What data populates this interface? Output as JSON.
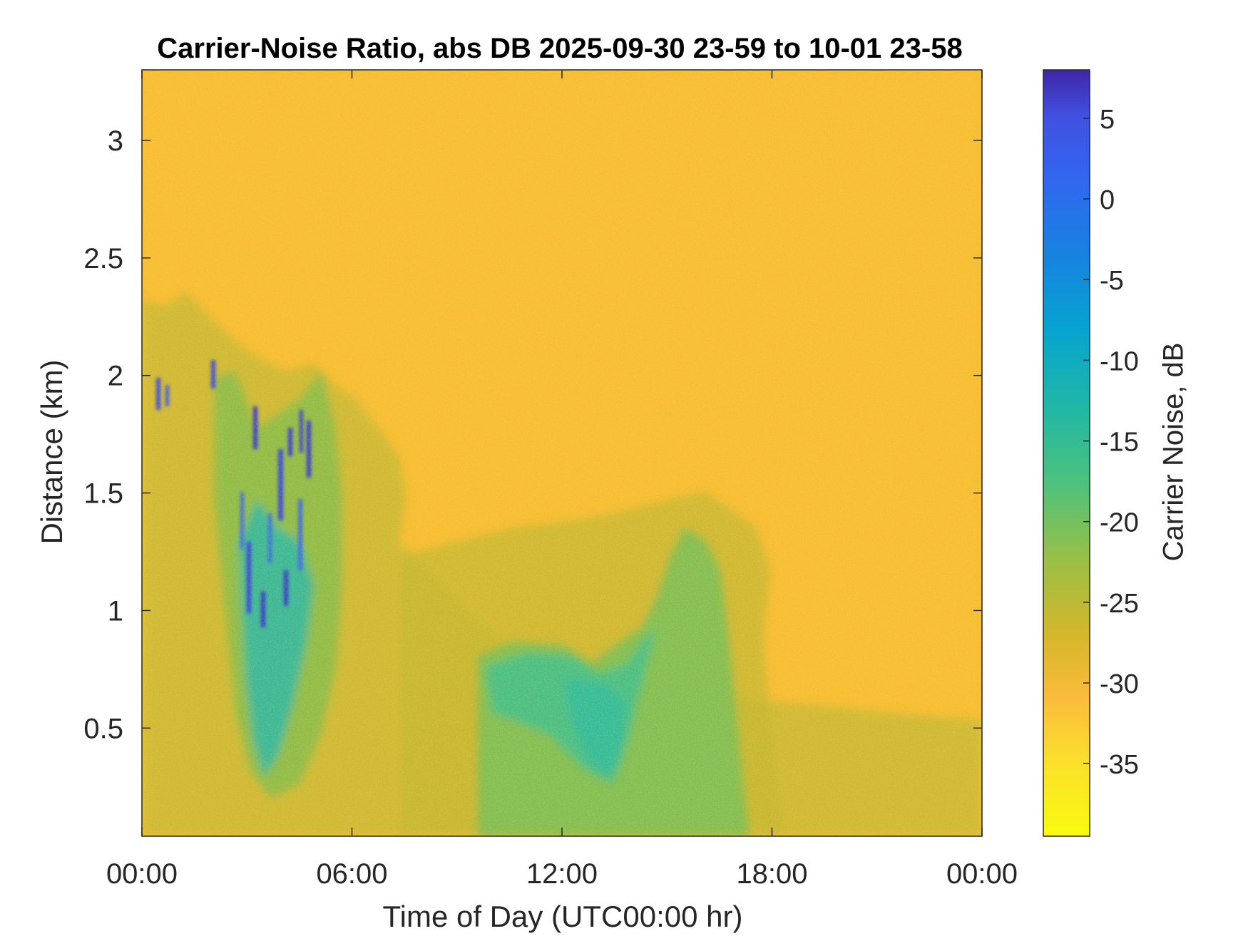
{
  "chart_data": {
    "type": "heatmap",
    "title": "Carrier-Noise Ratio, abs DB 2025-09-30 23-59 to 10-01 23-58",
    "xlabel": "Time of Day (UTC00:00 hr)",
    "ylabel": "Distance (km)",
    "x_ticks": [
      {
        "value": 0,
        "label": "00:00"
      },
      {
        "value": 6,
        "label": "06:00"
      },
      {
        "value": 12,
        "label": "12:00"
      },
      {
        "value": 18,
        "label": "18:00"
      },
      {
        "value": 24,
        "label": "00:00"
      }
    ],
    "y_ticks": [
      {
        "value": 0.5,
        "label": "0.5"
      },
      {
        "value": 1,
        "label": "1"
      },
      {
        "value": 1.5,
        "label": "1.5"
      },
      {
        "value": 2,
        "label": "2"
      },
      {
        "value": 2.5,
        "label": "2.5"
      },
      {
        "value": 3,
        "label": "3"
      }
    ],
    "xlim": [
      0,
      24
    ],
    "ylim": [
      0.04,
      3.3
    ],
    "colorbar": {
      "label": "Carrier Noise, dB",
      "limits": [
        -39.5,
        8
      ],
      "ticks": [
        5,
        0,
        -5,
        -10,
        -15,
        -20,
        -25,
        -30,
        -35
      ],
      "colormap": "parula"
    },
    "background_value_db": -33,
    "features": [
      {
        "description": "Aerosol layer near surface rising to ~2.3 km before 06:00",
        "x_range": [
          0,
          7.5
        ],
        "y_range": [
          0.04,
          2.3
        ],
        "value_db": -27
      },
      {
        "description": "Strong returns / clouds",
        "x_range": [
          2.8,
          5.0
        ],
        "y_range": [
          0.9,
          1.9
        ],
        "value_db": 4
      },
      {
        "description": "Boundary layer midday",
        "x_range": [
          9.5,
          15.5
        ],
        "y_range": [
          0.04,
          1.4
        ],
        "value_db": -20
      }
    ]
  }
}
